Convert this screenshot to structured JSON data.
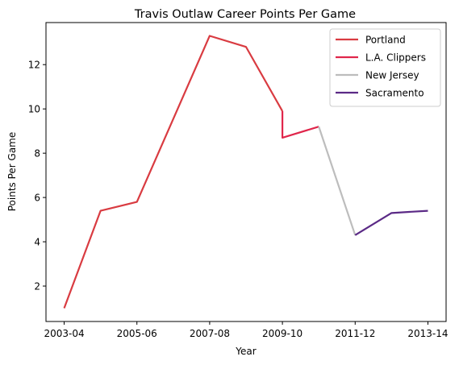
{
  "chart_data": {
    "type": "line",
    "title": "Travis Outlaw Career Points Per Game",
    "xlabel": "Year",
    "ylabel": "Points Per Game",
    "x_tick_labels": [
      "2003-04",
      "2005-06",
      "2007-08",
      "2009-10",
      "2011-12",
      "2013-14"
    ],
    "x_tick_values": [
      0,
      2,
      4,
      6,
      8,
      10
    ],
    "y_ticks": [
      2,
      4,
      6,
      8,
      10,
      12
    ],
    "xlim": [
      -0.5,
      10.5
    ],
    "ylim": [
      0.4,
      13.9
    ],
    "grid": false,
    "legend_position": "top-right",
    "series": [
      {
        "name": "Portland",
        "color": "#d93b41",
        "points": [
          [
            0,
            1.0
          ],
          [
            1,
            5.4
          ],
          [
            2,
            5.8
          ],
          [
            4,
            13.3
          ],
          [
            5,
            12.8
          ],
          [
            6,
            9.9
          ]
        ]
      },
      {
        "name": "L.A. Clippers",
        "color": "#e0264b",
        "points": [
          [
            6,
            9.9
          ],
          [
            6,
            8.7
          ],
          [
            7,
            9.2
          ]
        ]
      },
      {
        "name": "New Jersey",
        "color": "#bdbdbd",
        "points": [
          [
            7,
            9.2
          ],
          [
            8,
            4.3
          ]
        ]
      },
      {
        "name": "Sacramento",
        "color": "#5b2a86",
        "points": [
          [
            8,
            4.3
          ],
          [
            9,
            5.3
          ],
          [
            10,
            5.4
          ]
        ]
      }
    ]
  }
}
